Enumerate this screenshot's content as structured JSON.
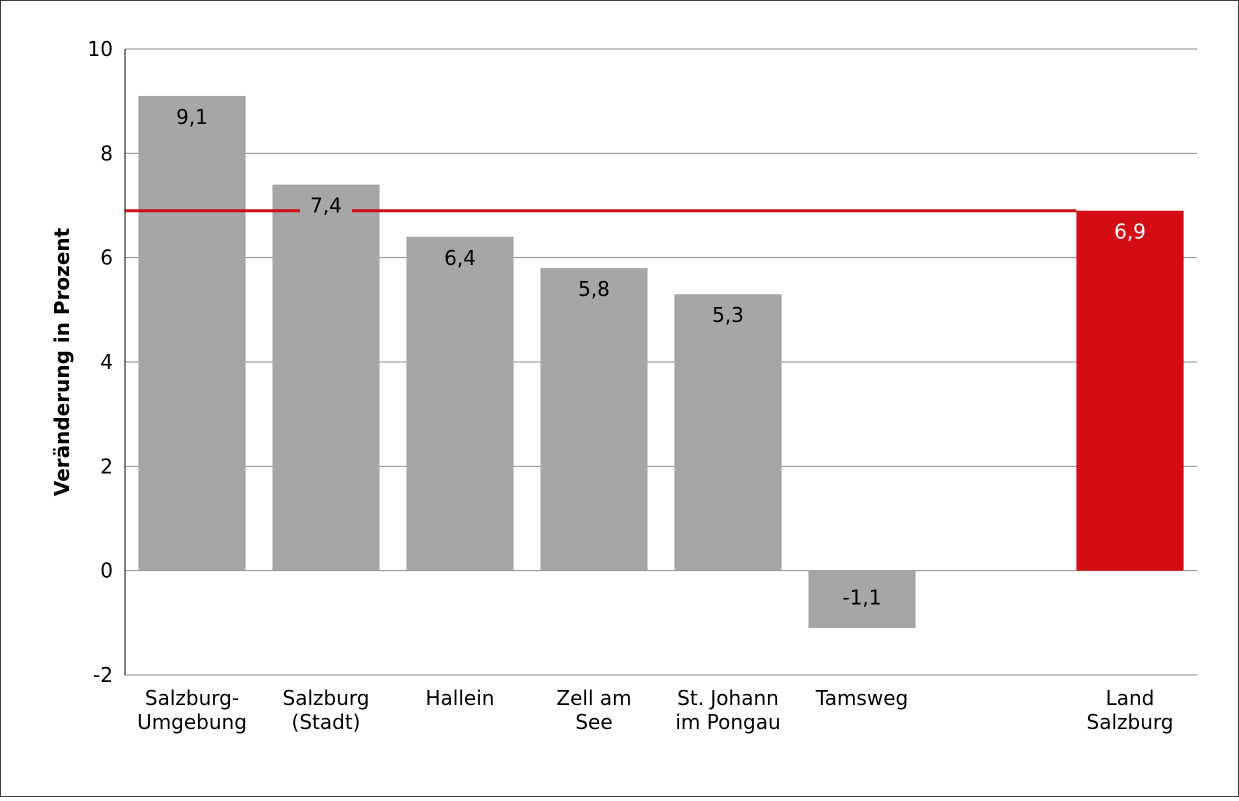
{
  "chart_data": {
    "type": "bar",
    "title": "",
    "xlabel": "",
    "ylabel": "Veränderung in Prozent",
    "ylim": [
      -2,
      10
    ],
    "yticks": [
      -2,
      0,
      2,
      4,
      6,
      8,
      10
    ],
    "grid": true,
    "categories": [
      [
        "Salzburg-",
        "Umgebung"
      ],
      [
        "Salzburg",
        "(Stadt)"
      ],
      [
        "Hallein"
      ],
      [
        "Zell am",
        "See"
      ],
      [
        "St. Johann",
        "im Pongau"
      ],
      [
        "Tamsweg"
      ],
      [
        ""
      ],
      [
        "Land",
        "Salzburg"
      ]
    ],
    "values": [
      9.1,
      7.4,
      6.4,
      5.8,
      5.3,
      -1.1,
      null,
      6.9
    ],
    "value_labels": [
      "9,1",
      "7,4",
      "6,4",
      "5,8",
      "5,3",
      "-1,1",
      "",
      "6,9"
    ],
    "reference_line": {
      "value": 6.9
    },
    "colors": {
      "bar": "#a6a6a6",
      "highlight_bar": "#d40d15",
      "reference_line": "#d40d15",
      "grid": "#8c8c8c",
      "axis": "#000000",
      "label_dark": "#000000",
      "label_light": "#ffffff"
    },
    "highlight_index": 7
  }
}
